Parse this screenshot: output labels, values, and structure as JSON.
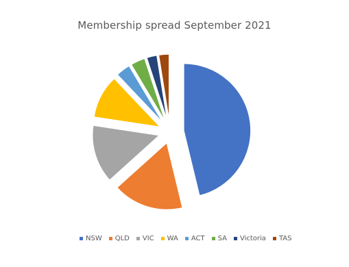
{
  "chart_data": {
    "type": "pie",
    "title": "Membership spread September 2021",
    "categories": [
      "NSW",
      "QLD",
      "VIC",
      "WA",
      "ACT",
      "SA",
      "Victoria",
      "TAS"
    ],
    "values": [
      46.0,
      17.0,
      14.0,
      10.5,
      3.5,
      3.5,
      2.5,
      2.5
    ],
    "value_unit": "percent (estimated)",
    "colors": [
      "#4472C4",
      "#ED7D31",
      "#A5A5A5",
      "#FFC000",
      "#5B9BD5",
      "#70AD47",
      "#264478",
      "#9E480E"
    ],
    "exploded": true,
    "legend_position": "bottom"
  }
}
